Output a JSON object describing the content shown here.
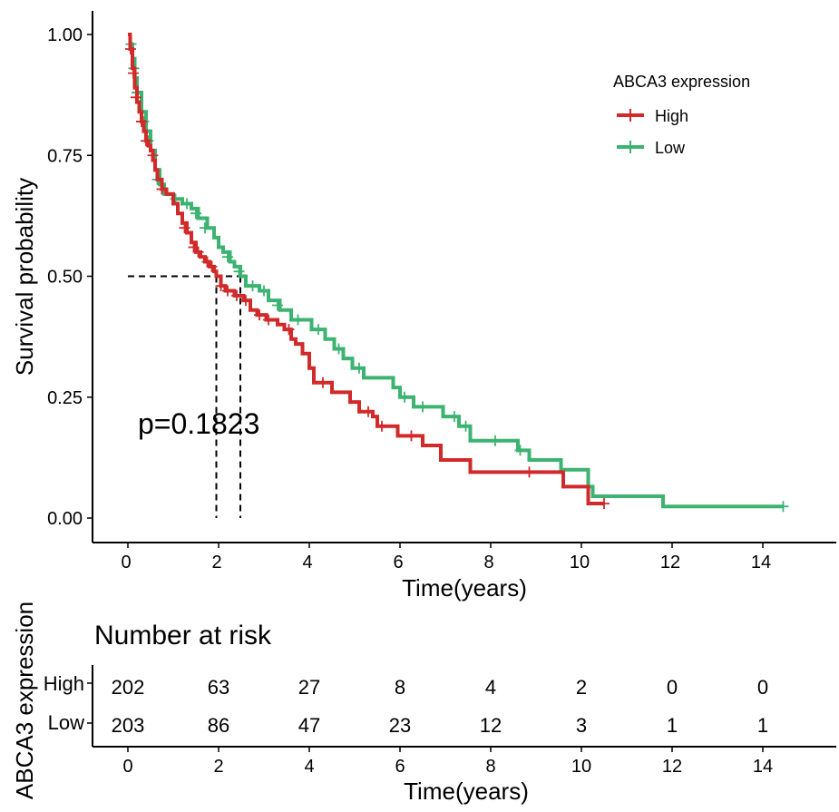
{
  "colors": {
    "high": "#D12A2A",
    "low": "#3CB371",
    "axis": "#000000",
    "median_line": "#000000"
  },
  "chart_data": {
    "type": "line",
    "subtype": "kaplan-meier",
    "xlabel": "Time(years)",
    "ylabel": "Survival probability",
    "xlim": [
      -0.7,
      15.7
    ],
    "ylim": [
      -0.05,
      1.05
    ],
    "xticks": [
      "0",
      "2",
      "4",
      "6",
      "8",
      "10",
      "12",
      "14"
    ],
    "xtick_values": [
      0,
      2,
      4,
      6,
      8,
      10,
      12,
      14
    ],
    "yticks": [
      "0.00",
      "0.25",
      "0.50",
      "0.75",
      "1.00"
    ],
    "ytick_values": [
      0,
      0.25,
      0.5,
      0.75,
      1.0
    ],
    "grid": false,
    "legend": {
      "title": "ABCA3 expression",
      "placement": "top-right"
    },
    "annotation": "p=0.1823",
    "median_survival": [
      {
        "group": "High",
        "x": 1.95,
        "y": 0.5
      },
      {
        "group": "Low",
        "x": 2.48,
        "y": 0.5
      }
    ],
    "series": [
      {
        "name": "High",
        "color": "#D12A2A",
        "steps": [
          [
            0.0,
            1.0
          ],
          [
            0.05,
            0.97
          ],
          [
            0.1,
            0.93
          ],
          [
            0.15,
            0.89
          ],
          [
            0.2,
            0.86
          ],
          [
            0.25,
            0.84
          ],
          [
            0.3,
            0.82
          ],
          [
            0.35,
            0.8
          ],
          [
            0.4,
            0.78
          ],
          [
            0.45,
            0.77
          ],
          [
            0.5,
            0.76
          ],
          [
            0.55,
            0.74
          ],
          [
            0.6,
            0.72
          ],
          [
            0.65,
            0.7
          ],
          [
            0.75,
            0.68
          ],
          [
            0.85,
            0.67
          ],
          [
            1.0,
            0.65
          ],
          [
            1.1,
            0.63
          ],
          [
            1.2,
            0.61
          ],
          [
            1.3,
            0.59
          ],
          [
            1.4,
            0.57
          ],
          [
            1.5,
            0.55
          ],
          [
            1.6,
            0.54
          ],
          [
            1.7,
            0.53
          ],
          [
            1.8,
            0.52
          ],
          [
            1.9,
            0.51
          ],
          [
            1.95,
            0.5
          ],
          [
            2.05,
            0.48
          ],
          [
            2.15,
            0.47
          ],
          [
            2.35,
            0.46
          ],
          [
            2.55,
            0.45
          ],
          [
            2.7,
            0.43
          ],
          [
            2.85,
            0.42
          ],
          [
            3.05,
            0.41
          ],
          [
            3.3,
            0.4
          ],
          [
            3.45,
            0.39
          ],
          [
            3.6,
            0.37
          ],
          [
            3.7,
            0.36
          ],
          [
            3.85,
            0.34
          ],
          [
            4.0,
            0.31
          ],
          [
            4.1,
            0.28
          ],
          [
            4.5,
            0.26
          ],
          [
            4.9,
            0.24
          ],
          [
            5.1,
            0.22
          ],
          [
            5.4,
            0.21
          ],
          [
            5.5,
            0.19
          ],
          [
            5.95,
            0.17
          ],
          [
            6.5,
            0.15
          ],
          [
            6.9,
            0.12
          ],
          [
            7.55,
            0.095
          ],
          [
            9.6,
            0.065
          ],
          [
            10.15,
            0.03
          ],
          [
            10.5,
            0.03
          ]
        ],
        "censors": [
          [
            0.06,
            0.97
          ],
          [
            0.12,
            0.92
          ],
          [
            0.18,
            0.87
          ],
          [
            0.3,
            0.82
          ],
          [
            0.4,
            0.78
          ],
          [
            0.55,
            0.75
          ],
          [
            0.75,
            0.68
          ],
          [
            1.25,
            0.6
          ],
          [
            1.45,
            0.56
          ],
          [
            1.55,
            0.55
          ],
          [
            1.75,
            0.53
          ],
          [
            1.85,
            0.52
          ],
          [
            2.05,
            0.48
          ],
          [
            2.2,
            0.47
          ],
          [
            2.4,
            0.46
          ],
          [
            2.6,
            0.45
          ],
          [
            2.9,
            0.42
          ],
          [
            3.1,
            0.41
          ],
          [
            3.55,
            0.39
          ],
          [
            4.3,
            0.28
          ],
          [
            5.3,
            0.22
          ],
          [
            5.6,
            0.19
          ],
          [
            6.25,
            0.17
          ],
          [
            8.85,
            0.095
          ],
          [
            10.5,
            0.03
          ]
        ]
      },
      {
        "name": "Low",
        "color": "#3CB371",
        "steps": [
          [
            0.0,
            1.0
          ],
          [
            0.05,
            0.98
          ],
          [
            0.1,
            0.95
          ],
          [
            0.15,
            0.91
          ],
          [
            0.2,
            0.88
          ],
          [
            0.3,
            0.84
          ],
          [
            0.4,
            0.8
          ],
          [
            0.5,
            0.76
          ],
          [
            0.6,
            0.72
          ],
          [
            0.7,
            0.69
          ],
          [
            0.8,
            0.67
          ],
          [
            1.0,
            0.66
          ],
          [
            1.2,
            0.65
          ],
          [
            1.4,
            0.64
          ],
          [
            1.55,
            0.62
          ],
          [
            1.75,
            0.6
          ],
          [
            1.9,
            0.58
          ],
          [
            2.0,
            0.56
          ],
          [
            2.1,
            0.55
          ],
          [
            2.25,
            0.53
          ],
          [
            2.35,
            0.52
          ],
          [
            2.48,
            0.5
          ],
          [
            2.6,
            0.48
          ],
          [
            2.9,
            0.47
          ],
          [
            3.1,
            0.45
          ],
          [
            3.35,
            0.43
          ],
          [
            3.6,
            0.41
          ],
          [
            4.05,
            0.39
          ],
          [
            4.35,
            0.37
          ],
          [
            4.55,
            0.35
          ],
          [
            4.75,
            0.33
          ],
          [
            4.95,
            0.31
          ],
          [
            5.2,
            0.29
          ],
          [
            5.85,
            0.27
          ],
          [
            6.0,
            0.25
          ],
          [
            6.3,
            0.23
          ],
          [
            6.95,
            0.21
          ],
          [
            7.3,
            0.19
          ],
          [
            7.55,
            0.16
          ],
          [
            8.6,
            0.14
          ],
          [
            8.85,
            0.12
          ],
          [
            9.55,
            0.1
          ],
          [
            10.15,
            0.065
          ],
          [
            10.25,
            0.045
          ],
          [
            11.8,
            0.024
          ],
          [
            14.45,
            0.024
          ]
        ],
        "censors": [
          [
            0.07,
            0.98
          ],
          [
            0.13,
            0.93
          ],
          [
            0.2,
            0.88
          ],
          [
            0.35,
            0.82
          ],
          [
            0.45,
            0.78
          ],
          [
            0.65,
            0.7
          ],
          [
            1.05,
            0.66
          ],
          [
            1.3,
            0.65
          ],
          [
            1.5,
            0.63
          ],
          [
            1.7,
            0.6
          ],
          [
            2.2,
            0.54
          ],
          [
            2.45,
            0.51
          ],
          [
            2.75,
            0.48
          ],
          [
            3.0,
            0.47
          ],
          [
            3.3,
            0.44
          ],
          [
            3.75,
            0.41
          ],
          [
            4.2,
            0.39
          ],
          [
            4.65,
            0.35
          ],
          [
            5.1,
            0.31
          ],
          [
            6.1,
            0.25
          ],
          [
            6.5,
            0.23
          ],
          [
            7.2,
            0.21
          ],
          [
            7.45,
            0.19
          ],
          [
            8.1,
            0.16
          ],
          [
            8.65,
            0.14
          ],
          [
            14.45,
            0.024
          ]
        ]
      }
    ],
    "risk_table": {
      "title": "Number at risk",
      "ylabel": "ABCA3 expression",
      "xlabel": "Time(years)",
      "times": [
        "0",
        "2",
        "4",
        "6",
        "8",
        "10",
        "12",
        "14"
      ],
      "rows": [
        {
          "group": "High",
          "counts": [
            "202",
            "63",
            "27",
            "8",
            "4",
            "2",
            "0",
            "0"
          ]
        },
        {
          "group": "Low",
          "counts": [
            "203",
            "86",
            "47",
            "23",
            "12",
            "3",
            "1",
            "1"
          ]
        }
      ]
    }
  }
}
